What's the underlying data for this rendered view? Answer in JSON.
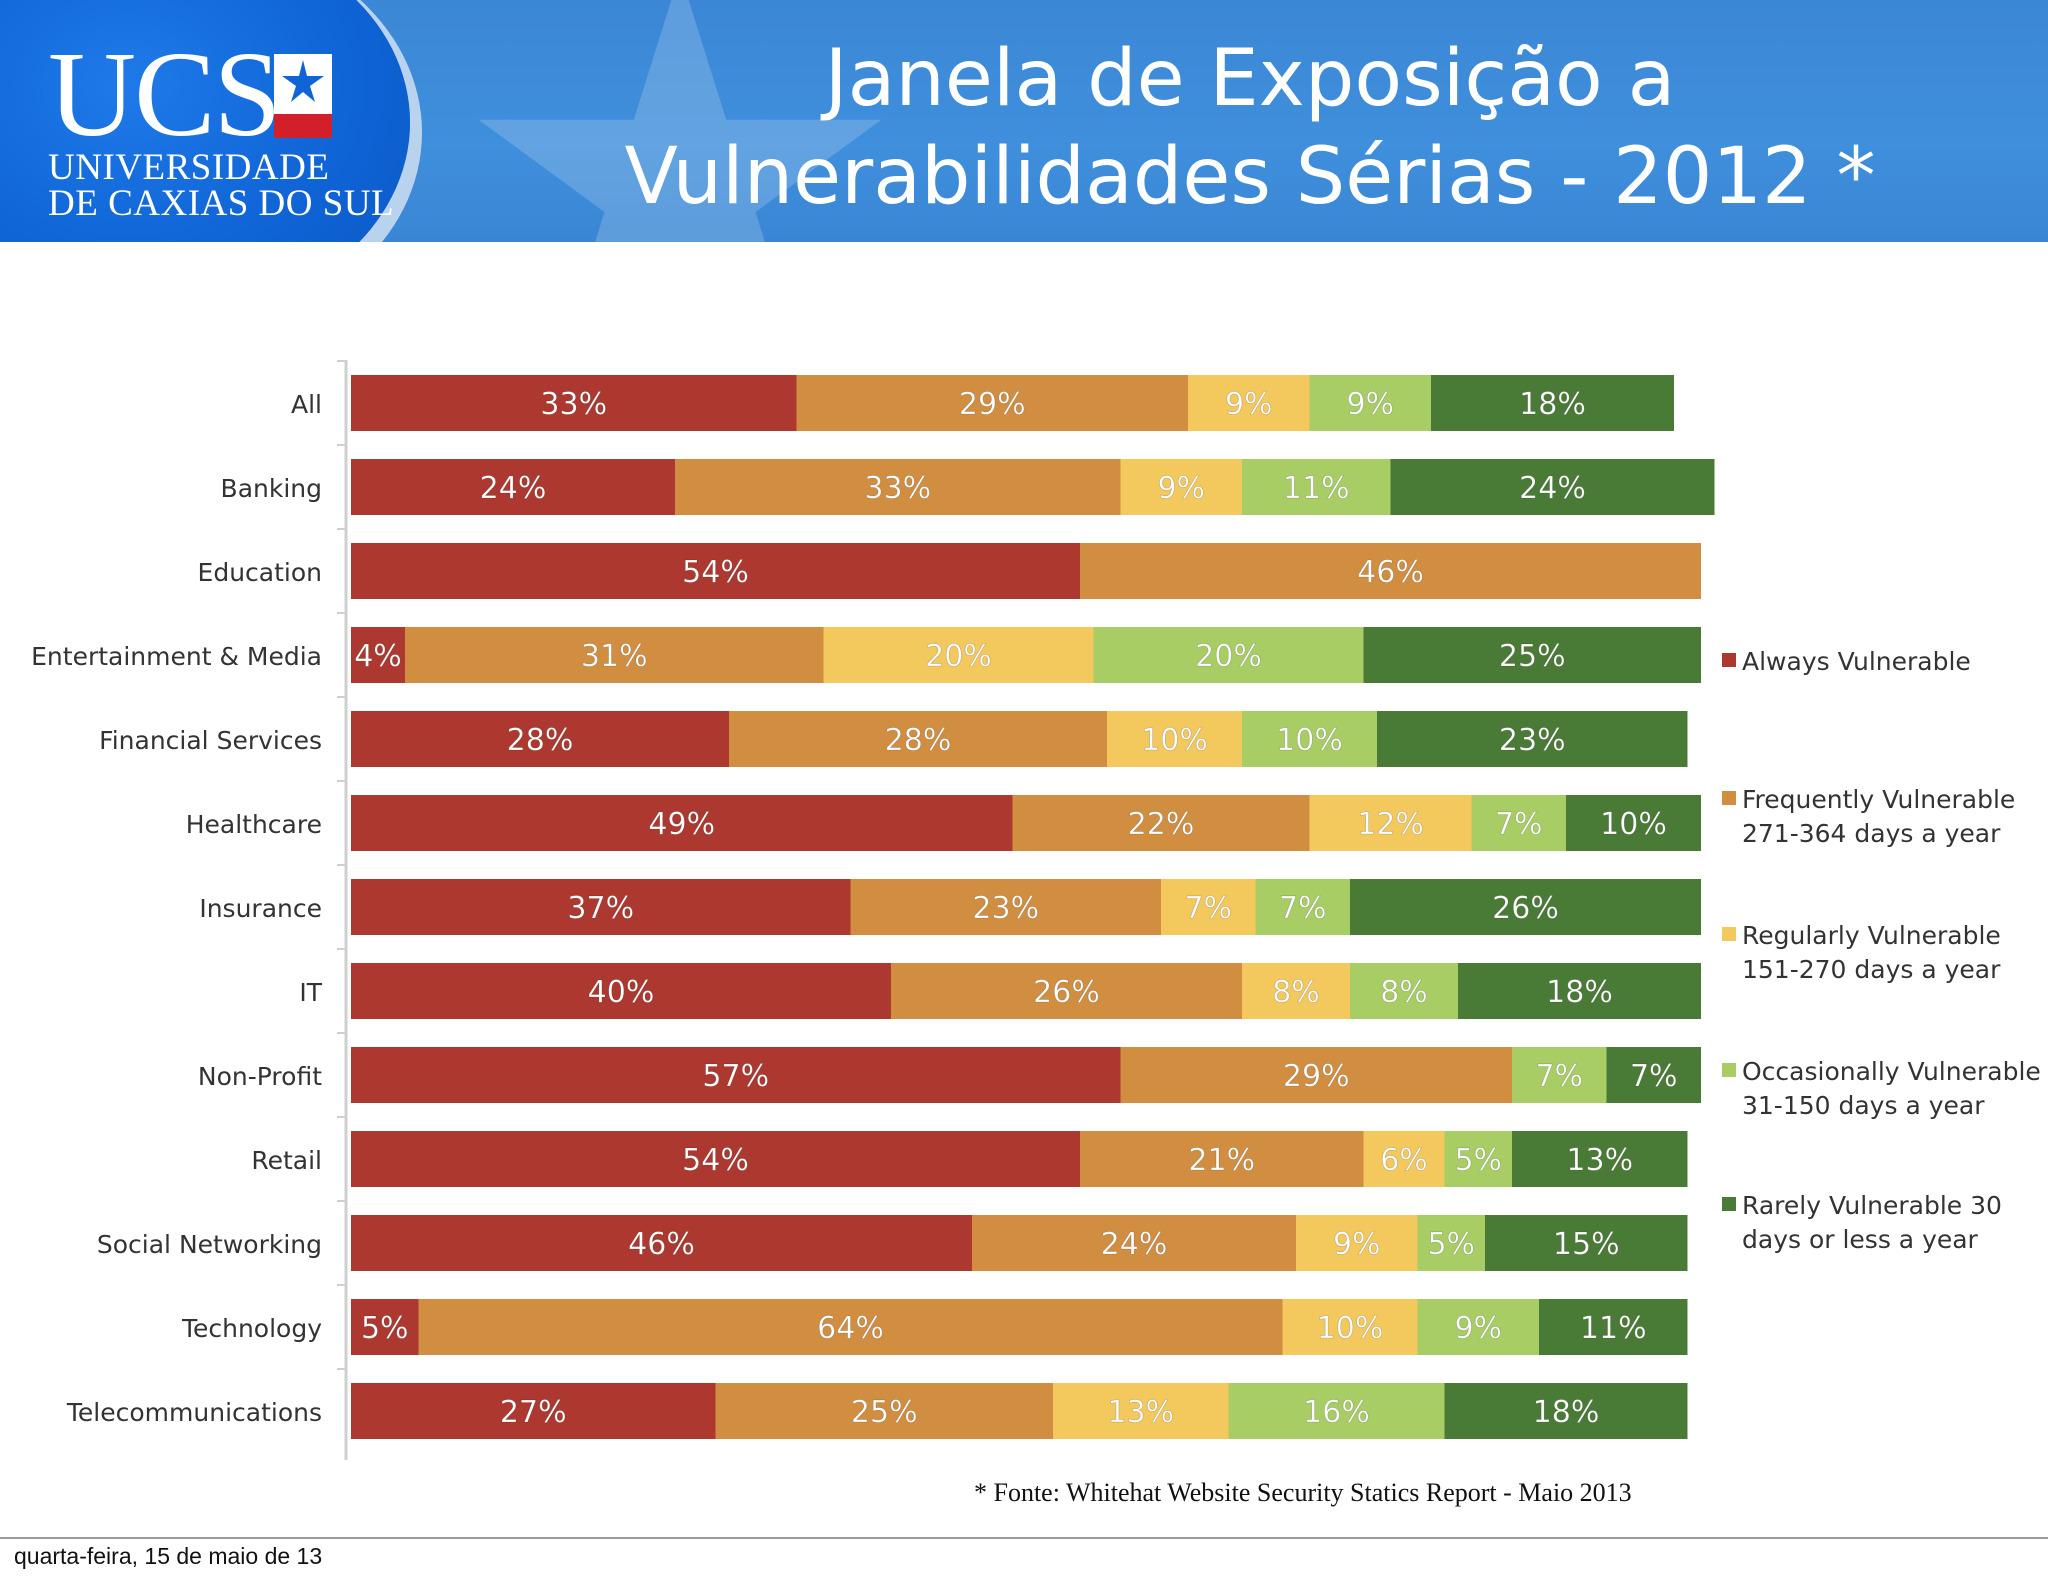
{
  "slide": {
    "title_line1": "Janela de Exposição a",
    "title_line2": "Vulnerabilidades Sérias - 2012 *",
    "source": "* Fonte: Whitehat Website Security Statics Report - Maio 2013",
    "footer_date": "quarta-feira, 15 de maio de 13"
  },
  "logo": {
    "name": "UCS",
    "line1": "UNIVERSIDADE",
    "line2": "DE CAXIAS DO SUL"
  },
  "colors": {
    "header": "#3b87d6",
    "always": "#ad3830",
    "frequently": "#d18e41",
    "regularly": "#f3c85c",
    "occasionally": "#a8cd64",
    "rarely": "#4a7b36"
  },
  "chart_data": {
    "type": "bar",
    "orientation": "horizontal",
    "stacked": true,
    "categories": [
      "All",
      "Banking",
      "Education",
      "Entertainment & Media",
      "Financial Services",
      "Healthcare",
      "Insurance",
      "IT",
      "Non-Profit",
      "Retail",
      "Social Networking",
      "Technology",
      "Telecommunications"
    ],
    "series": [
      {
        "name": "Always Vulnerable",
        "color": "#ad3830",
        "values": [
          33,
          24,
          54,
          4,
          28,
          49,
          37,
          40,
          57,
          54,
          46,
          5,
          27
        ]
      },
      {
        "name": "Frequently Vulnerable 271-364 days a year",
        "color": "#d18e41",
        "values": [
          29,
          33,
          46,
          31,
          28,
          22,
          23,
          26,
          29,
          21,
          24,
          64,
          25
        ]
      },
      {
        "name": "Regularly Vulnerable 151-270 days a year",
        "color": "#f3c85c",
        "values": [
          9,
          9,
          0,
          20,
          10,
          12,
          7,
          8,
          0,
          6,
          9,
          10,
          13
        ]
      },
      {
        "name": "Occasionally Vulnerable 31-150 days a year",
        "color": "#a8cd64",
        "values": [
          9,
          11,
          0,
          20,
          10,
          7,
          7,
          8,
          7,
          5,
          5,
          9,
          16
        ]
      },
      {
        "name": "Rarely Vulnerable 30 days or less a year",
        "color": "#4a7b36",
        "values": [
          18,
          24,
          0,
          25,
          23,
          10,
          26,
          18,
          7,
          13,
          15,
          11,
          18
        ]
      }
    ],
    "legend": [
      {
        "lines": [
          "Always Vulnerable"
        ],
        "color": "#ad3830"
      },
      {
        "lines": [
          "Frequently Vulnerable",
          "271-364 days a year"
        ],
        "color": "#d18e41"
      },
      {
        "lines": [
          "Regularly Vulnerable",
          "151-270 days a year"
        ],
        "color": "#f3c85c"
      },
      {
        "lines": [
          "Occasionally Vulnerable",
          "31-150 days a year"
        ],
        "color": "#a8cd64"
      },
      {
        "lines": [
          "Rarely Vulnerable 30",
          "days or less a year"
        ],
        "color": "#4a7b36"
      }
    ],
    "legend_position": "right",
    "data_labels": "percent inside each segment",
    "grid": false
  }
}
